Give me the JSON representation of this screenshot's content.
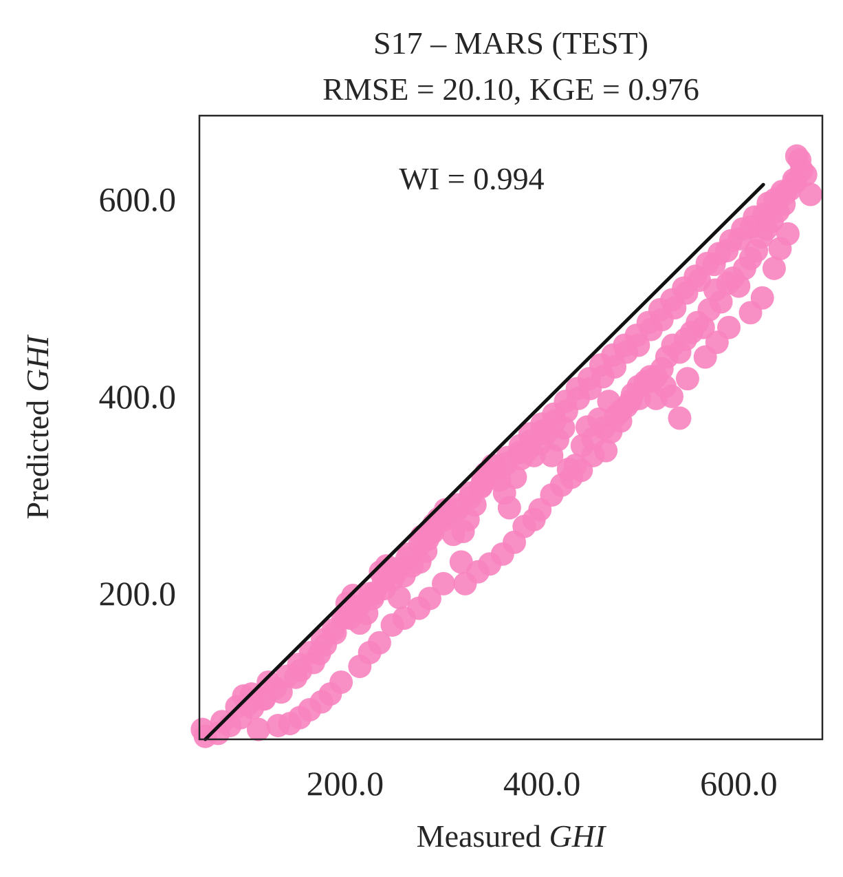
{
  "chart_data": {
    "type": "scatter",
    "title": "S17 – MARS (TEST)",
    "subtitle": "RMSE = 20.10, KGE = 0.976",
    "xlabel": {
      "prefix": "Measured ",
      "var": "GHI"
    },
    "ylabel": {
      "prefix": "Predicted ",
      "var": "GHI"
    },
    "annotation": "WI = 0.994",
    "xlim": [
      52,
      685
    ],
    "ylim": [
      52,
      685
    ],
    "xticks": [
      200,
      400,
      600
    ],
    "yticks": [
      200,
      400,
      600
    ],
    "tick_labels": {
      "x": [
        "200.0",
        "400.0",
        "600.0"
      ],
      "y": [
        "200.0",
        "400.0",
        "600.0"
      ]
    },
    "grid": false,
    "colors": {
      "points": "#f783bf",
      "line": "#111111",
      "frame": "#262626",
      "text": "#262626"
    },
    "fit_line": {
      "x": [
        58,
        625
      ],
      "y": [
        52,
        615
      ]
    },
    "points": [
      [
        55,
        62
      ],
      [
        58,
        55
      ],
      [
        97,
        96
      ],
      [
        105,
        98
      ],
      [
        118,
        93
      ],
      [
        122,
        110
      ],
      [
        155,
        122
      ],
      [
        168,
        130
      ],
      [
        174,
        139
      ],
      [
        198,
        175
      ],
      [
        202,
        190
      ],
      [
        208,
        198
      ],
      [
        212,
        185
      ],
      [
        215,
        170
      ],
      [
        222,
        180
      ],
      [
        230,
        200
      ],
      [
        236,
        222
      ],
      [
        242,
        228
      ],
      [
        248,
        214
      ],
      [
        255,
        196
      ],
      [
        260,
        218
      ],
      [
        268,
        228
      ],
      [
        276,
        232
      ],
      [
        282,
        243
      ],
      [
        284,
        255
      ],
      [
        287,
        262
      ],
      [
        295,
        276
      ],
      [
        302,
        285
      ],
      [
        310,
        260
      ],
      [
        320,
        263
      ],
      [
        325,
        275
      ],
      [
        332,
        290
      ],
      [
        338,
        308
      ],
      [
        343,
        322
      ],
      [
        350,
        330
      ],
      [
        357,
        315
      ],
      [
        362,
        302
      ],
      [
        367,
        287
      ],
      [
        373,
        318
      ],
      [
        379,
        337
      ],
      [
        385,
        345
      ],
      [
        392,
        340
      ],
      [
        398,
        352
      ],
      [
        404,
        362
      ],
      [
        410,
        340
      ],
      [
        416,
        356
      ],
      [
        422,
        368
      ],
      [
        427,
        326
      ],
      [
        434,
        330
      ],
      [
        441,
        350
      ],
      [
        446,
        369
      ],
      [
        452,
        357
      ],
      [
        458,
        377
      ],
      [
        463,
        368
      ],
      [
        468,
        395
      ],
      [
        475,
        380
      ],
      [
        480,
        385
      ],
      [
        486,
        390
      ],
      [
        492,
        402
      ],
      [
        498,
        410
      ],
      [
        505,
        415
      ],
      [
        510,
        420
      ],
      [
        516,
        398
      ],
      [
        522,
        428
      ],
      [
        527,
        440
      ],
      [
        533,
        452
      ],
      [
        540,
        445
      ],
      [
        546,
        458
      ],
      [
        552,
        465
      ],
      [
        558,
        475
      ],
      [
        564,
        470
      ],
      [
        570,
        488
      ],
      [
        576,
        508
      ],
      [
        582,
        496
      ],
      [
        589,
        515
      ],
      [
        594,
        520
      ],
      [
        600,
        512
      ],
      [
        606,
        530
      ],
      [
        612,
        540
      ],
      [
        618,
        548
      ],
      [
        623,
        562
      ],
      [
        628,
        570
      ],
      [
        634,
        578
      ],
      [
        640,
        588
      ],
      [
        646,
        595
      ],
      [
        652,
        610
      ],
      [
        658,
        618
      ],
      [
        664,
        630
      ],
      [
        668,
        625
      ],
      [
        673,
        605
      ],
      [
        650,
        565
      ],
      [
        642,
        550
      ],
      [
        636,
        530
      ],
      [
        624,
        500
      ],
      [
        612,
        485
      ],
      [
        590,
        470
      ],
      [
        578,
        455
      ],
      [
        566,
        440
      ],
      [
        548,
        418
      ],
      [
        540,
        378
      ],
      [
        532,
        400
      ],
      [
        525,
        410
      ],
      [
        516,
        420
      ],
      [
        508,
        415
      ],
      [
        499,
        398
      ],
      [
        490,
        395
      ],
      [
        480,
        375
      ],
      [
        470,
        364
      ],
      [
        465,
        345
      ],
      [
        452,
        340
      ],
      [
        440,
        325
      ],
      [
        430,
        318
      ],
      [
        420,
        310
      ],
      [
        410,
        300
      ],
      [
        398,
        285
      ],
      [
        392,
        275
      ],
      [
        382,
        268
      ],
      [
        372,
        252
      ],
      [
        360,
        240
      ],
      [
        347,
        230
      ],
      [
        335,
        222
      ],
      [
        322,
        210
      ],
      [
        318,
        232
      ],
      [
        300,
        210
      ],
      [
        286,
        195
      ],
      [
        275,
        185
      ],
      [
        260,
        175
      ],
      [
        248,
        168
      ],
      [
        235,
        150
      ],
      [
        225,
        140
      ],
      [
        215,
        126
      ],
      [
        196,
        110
      ],
      [
        185,
        98
      ],
      [
        176,
        90
      ],
      [
        164,
        82
      ],
      [
        154,
        74
      ],
      [
        144,
        68
      ],
      [
        132,
        66
      ],
      [
        112,
        62
      ],
      [
        75,
        70
      ],
      [
        90,
        85
      ],
      [
        102,
        88
      ],
      [
        135,
        100
      ],
      [
        150,
        115
      ],
      [
        180,
        148
      ],
      [
        190,
        160
      ],
      [
        205,
        175
      ],
      [
        228,
        195
      ],
      [
        240,
        205
      ],
      [
        252,
        222
      ],
      [
        265,
        240
      ],
      [
        278,
        258
      ],
      [
        290,
        270
      ],
      [
        305,
        280
      ],
      [
        315,
        290
      ],
      [
        328,
        302
      ],
      [
        340,
        315
      ],
      [
        352,
        328
      ],
      [
        365,
        338
      ],
      [
        378,
        350
      ],
      [
        388,
        362
      ],
      [
        400,
        372
      ],
      [
        412,
        382
      ],
      [
        424,
        395
      ],
      [
        436,
        408
      ],
      [
        448,
        418
      ],
      [
        460,
        432
      ],
      [
        472,
        442
      ],
      [
        484,
        452
      ],
      [
        496,
        462
      ],
      [
        508,
        475
      ],
      [
        520,
        488
      ],
      [
        532,
        498
      ],
      [
        544,
        510
      ],
      [
        556,
        522
      ],
      [
        568,
        535
      ],
      [
        580,
        545
      ],
      [
        592,
        558
      ],
      [
        604,
        570
      ],
      [
        616,
        582
      ],
      [
        630,
        596
      ],
      [
        644,
        608
      ],
      [
        656,
        620
      ],
      [
        662,
        640
      ],
      [
        659,
        644
      ],
      [
        647,
        606
      ],
      [
        637,
        600
      ],
      [
        626,
        585
      ],
      [
        613,
        572
      ],
      [
        601,
        560
      ],
      [
        588,
        548
      ],
      [
        575,
        534
      ],
      [
        560,
        518
      ],
      [
        547,
        505
      ],
      [
        535,
        490
      ],
      [
        522,
        478
      ],
      [
        511,
        468
      ],
      [
        498,
        452
      ],
      [
        486,
        445
      ],
      [
        474,
        430
      ],
      [
        462,
        420
      ],
      [
        449,
        408
      ],
      [
        437,
        398
      ],
      [
        425,
        385
      ],
      [
        413,
        375
      ],
      [
        401,
        365
      ],
      [
        389,
        355
      ],
      [
        377,
        343
      ],
      [
        364,
        332
      ],
      [
        351,
        320
      ],
      [
        339,
        310
      ],
      [
        327,
        297
      ],
      [
        314,
        285
      ],
      [
        301,
        275
      ],
      [
        289,
        262
      ],
      [
        276,
        250
      ],
      [
        263,
        236
      ],
      [
        251,
        225
      ],
      [
        239,
        212
      ],
      [
        226,
        200
      ],
      [
        214,
        187
      ],
      [
        201,
        176
      ],
      [
        188,
        163
      ],
      [
        177,
        153
      ],
      [
        165,
        140
      ],
      [
        153,
        128
      ],
      [
        141,
        116
      ],
      [
        129,
        104
      ],
      [
        117,
        93
      ],
      [
        106,
        84
      ],
      [
        94,
        74
      ],
      [
        83,
        66
      ],
      [
        71,
        58
      ]
    ]
  }
}
